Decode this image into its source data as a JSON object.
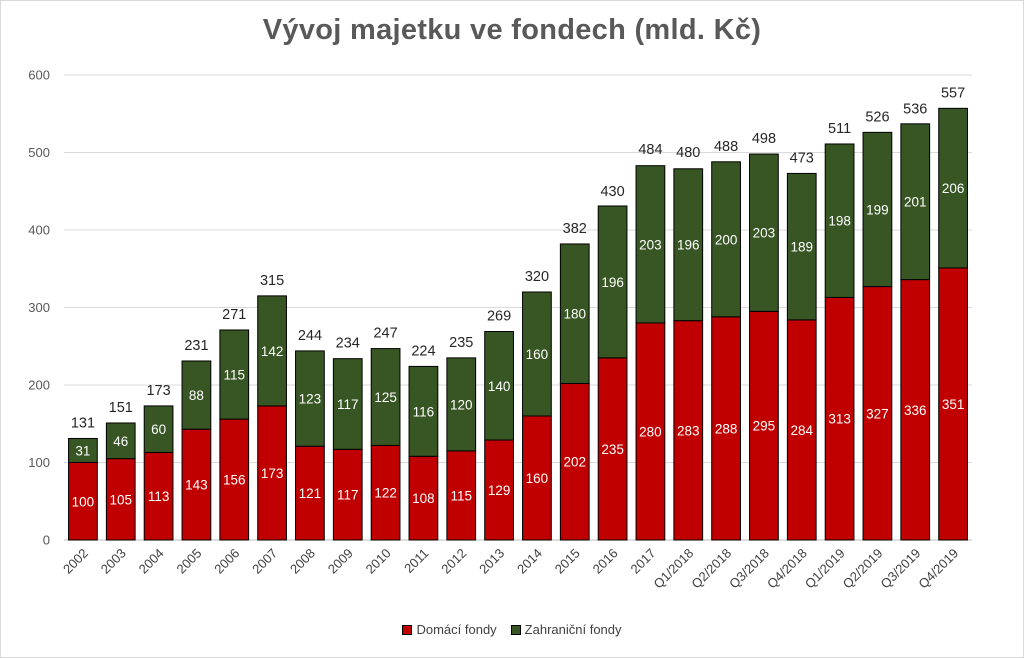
{
  "chart_data": {
    "type": "bar",
    "stacked": true,
    "title": "Vývoj majetku ve fondech (mld. Kč)",
    "xlabel": "",
    "ylabel": "",
    "ylim": [
      0,
      600
    ],
    "yticks": [
      0,
      100,
      200,
      300,
      400,
      500,
      600
    ],
    "grid": true,
    "legend_position": "bottom",
    "categories": [
      "2002",
      "2003",
      "2004",
      "2005",
      "2006",
      "2007",
      "2008",
      "2009",
      "2010",
      "2011",
      "2012",
      "2013",
      "2014",
      "2015",
      "2016",
      "2017",
      "Q1/2018",
      "Q2/2018",
      "Q3/2018",
      "Q4/2018",
      "Q1/2019",
      "Q2/2019",
      "Q3/2019",
      "Q4/2019"
    ],
    "series": [
      {
        "name": "Domácí fondy",
        "color": "#c00000",
        "values": [
          100,
          105,
          113,
          143,
          156,
          173,
          121,
          117,
          122,
          108,
          115,
          129,
          160,
          202,
          235,
          280,
          283,
          288,
          295,
          284,
          313,
          327,
          336,
          351
        ]
      },
      {
        "name": "Zahraniční fondy",
        "color": "#375623",
        "values": [
          31,
          46,
          60,
          88,
          115,
          142,
          123,
          117,
          125,
          116,
          120,
          140,
          160,
          180,
          196,
          203,
          196,
          200,
          203,
          189,
          198,
          199,
          201,
          206
        ]
      }
    ],
    "totals": [
      131,
      151,
      173,
      231,
      271,
      315,
      244,
      234,
      247,
      224,
      235,
      269,
      320,
      382,
      430,
      484,
      480,
      488,
      498,
      473,
      511,
      526,
      536,
      557
    ]
  }
}
